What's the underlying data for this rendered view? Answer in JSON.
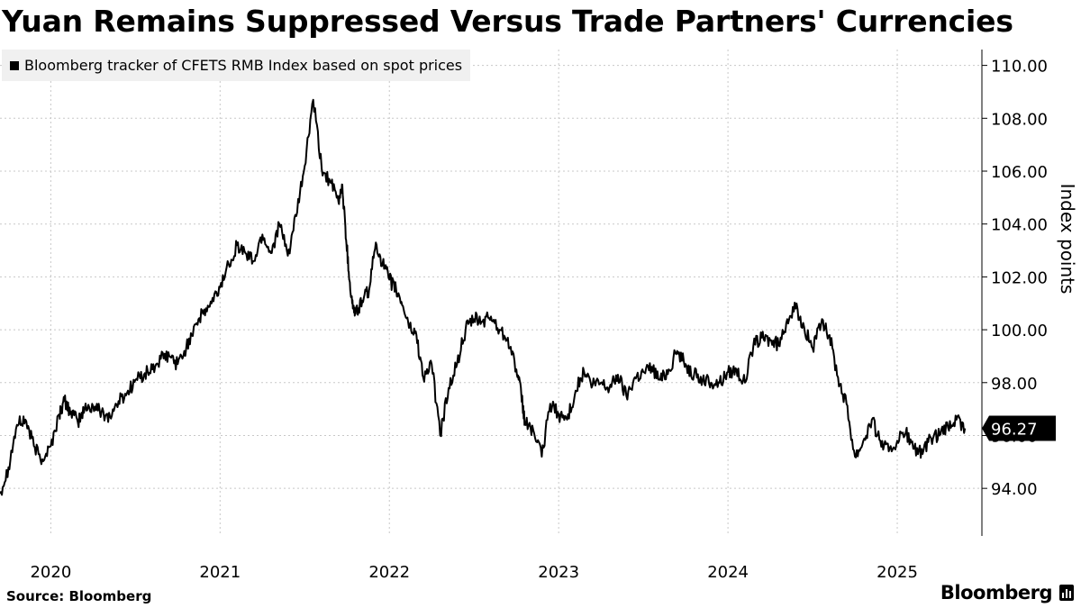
{
  "title": "Yuan Remains Suppressed Versus Trade Partners' Currencies",
  "legend": {
    "label": "Bloomberg tracker of CFETS RMB Index based on spot prices"
  },
  "source": "Source: Bloomberg",
  "brand": {
    "text": "Bloomberg",
    "icon": "bloomberg-chart-icon"
  },
  "colors": {
    "line": "#000000",
    "grid": "#c8c8c8",
    "legend_bg": "#f0f0f0",
    "callout_bg": "#000000",
    "callout_text": "#ffffff"
  },
  "chart_data": {
    "type": "line",
    "title": "Yuan Remains Suppressed Versus Trade Partners' Currencies",
    "xlabel": "",
    "ylabel": "Index points",
    "ylim": [
      92.2,
      110.6
    ],
    "yticks": [
      94,
      96,
      98,
      100,
      102,
      104,
      106,
      108,
      110
    ],
    "ytick_labels": [
      "94.00",
      "96.00",
      "98.00",
      "100.00",
      "102.00",
      "104.00",
      "106.00",
      "108.00",
      "110.00"
    ],
    "xlim": [
      2019.7,
      2025.5
    ],
    "xticks": [
      2020,
      2021,
      2022,
      2023,
      2024,
      2025
    ],
    "xtick_labels": [
      "2020",
      "2021",
      "2022",
      "2023",
      "2024",
      "2025"
    ],
    "grid": true,
    "legend_position": "top-left",
    "last_value_label": "96.27",
    "series": [
      {
        "name": "Bloomberg tracker of CFETS RMB Index based on spot prices",
        "x": [
          2019.7,
          2019.75,
          2019.8,
          2019.85,
          2019.9,
          2019.95,
          2020.0,
          2020.05,
          2020.08,
          2020.12,
          2020.16,
          2020.2,
          2020.25,
          2020.3,
          2020.35,
          2020.4,
          2020.45,
          2020.5,
          2020.55,
          2020.6,
          2020.65,
          2020.7,
          2020.75,
          2020.8,
          2020.85,
          2020.9,
          2020.95,
          2021.0,
          2021.05,
          2021.1,
          2021.15,
          2021.2,
          2021.25,
          2021.3,
          2021.35,
          2021.4,
          2021.45,
          2021.5,
          2021.55,
          2021.6,
          2021.65,
          2021.7,
          2021.72,
          2021.74,
          2021.76,
          2021.78,
          2021.8,
          2021.84,
          2021.88,
          2021.92,
          2021.96,
          2022.0,
          2022.04,
          2022.08,
          2022.12,
          2022.16,
          2022.2,
          2022.25,
          2022.3,
          2022.35,
          2022.4,
          2022.45,
          2022.5,
          2022.55,
          2022.6,
          2022.65,
          2022.7,
          2022.75,
          2022.78,
          2022.8,
          2022.85,
          2022.9,
          2022.95,
          2023.0,
          2023.05,
          2023.1,
          2023.15,
          2023.2,
          2023.25,
          2023.3,
          2023.35,
          2023.4,
          2023.45,
          2023.5,
          2023.55,
          2023.6,
          2023.65,
          2023.7,
          2023.75,
          2023.8,
          2023.85,
          2023.9,
          2023.95,
          2024.0,
          2024.05,
          2024.1,
          2024.15,
          2024.2,
          2024.25,
          2024.3,
          2024.35,
          2024.4,
          2024.45,
          2024.5,
          2024.55,
          2024.6,
          2024.65,
          2024.7,
          2024.75,
          2024.8,
          2024.85,
          2024.9,
          2024.95,
          2025.0,
          2025.05,
          2025.1,
          2025.15,
          2025.2,
          2025.25,
          2025.3,
          2025.35,
          2025.4
        ],
        "y": [
          93.8,
          94.8,
          96.4,
          96.6,
          95.6,
          95.1,
          95.6,
          96.8,
          97.3,
          96.9,
          96.5,
          97.0,
          97.1,
          96.9,
          96.7,
          97.3,
          97.6,
          98.1,
          98.3,
          98.5,
          98.9,
          99.0,
          98.7,
          99.3,
          100.2,
          100.6,
          101.0,
          101.6,
          102.5,
          103.2,
          102.9,
          102.6,
          103.6,
          102.9,
          104.0,
          102.8,
          104.3,
          106.2,
          108.7,
          106.1,
          105.6,
          104.8,
          105.5,
          103.9,
          102.2,
          101.0,
          100.6,
          101.1,
          101.5,
          103.3,
          102.5,
          101.9,
          101.5,
          100.9,
          100.1,
          99.8,
          98.2,
          98.7,
          96.0,
          97.8,
          98.7,
          100.0,
          100.4,
          100.3,
          100.5,
          100.0,
          99.7,
          98.5,
          97.5,
          96.5,
          96.2,
          95.2,
          97.2,
          96.8,
          96.6,
          97.7,
          98.4,
          97.9,
          98.0,
          97.8,
          98.3,
          97.5,
          98.2,
          98.4,
          98.6,
          98.1,
          98.5,
          99.2,
          98.7,
          98.3,
          98.1,
          98.0,
          98.0,
          98.4,
          98.5,
          98.0,
          99.4,
          99.7,
          99.6,
          99.4,
          100.4,
          100.8,
          100.1,
          99.3,
          100.2,
          99.8,
          98.2,
          97.2,
          95.2,
          95.8,
          96.6,
          95.8,
          95.4,
          95.8,
          96.1,
          95.5,
          95.3,
          95.9,
          96.0,
          96.3,
          96.6,
          96.27
        ]
      }
    ]
  }
}
